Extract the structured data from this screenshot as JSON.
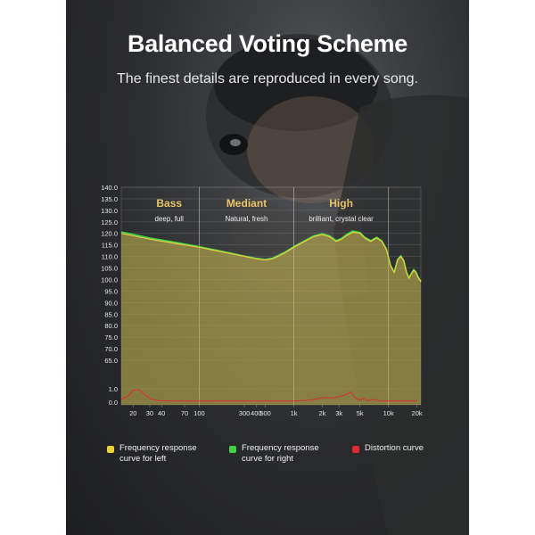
{
  "title": "Balanced Voting Scheme",
  "subtitle": "The finest details are reproduced in every song.",
  "colors": {
    "left": "#e8d23c",
    "right": "#3fd24a",
    "distortion": "#e02a36",
    "accent": "#e9c46a"
  },
  "chart_data": {
    "type": "line",
    "xscale": "log",
    "xlim": [
      15,
      22000
    ],
    "ylim": [
      0,
      140
    ],
    "ylabel": "",
    "xlabel": "",
    "grid": true,
    "y_ticks": [
      "140.0",
      "135.0",
      "130.0",
      "125.0",
      "120.0",
      "115.0",
      "110.0",
      "105.0",
      "100.0",
      "95.0",
      "90.0",
      "85.0",
      "80.0",
      "75.0",
      "70.0",
      "65.0",
      "1.0",
      "0.0"
    ],
    "x_ticks": [
      {
        "v": 20,
        "label": "20"
      },
      {
        "v": 30,
        "label": "30"
      },
      {
        "v": 40,
        "label": "40"
      },
      {
        "v": 70,
        "label": "70"
      },
      {
        "v": 100,
        "label": "100"
      },
      {
        "v": 300,
        "label": "300"
      },
      {
        "v": 400,
        "label": "400"
      },
      {
        "v": 500,
        "label": "500"
      },
      {
        "v": 1000,
        "label": "1k"
      },
      {
        "v": 2000,
        "label": "2k"
      },
      {
        "v": 3000,
        "label": "3k"
      },
      {
        "v": 5000,
        "label": "5k"
      },
      {
        "v": 10000,
        "label": "10k"
      },
      {
        "v": 20000,
        "label": "20k"
      }
    ],
    "regions": [
      {
        "name": "Bass",
        "description": "deep, full",
        "from": 15,
        "to": 100
      },
      {
        "name": "Mediant",
        "description": "Natural, fresh",
        "from": 100,
        "to": 1000
      },
      {
        "name": "High",
        "description": "brilliant, crystal clear",
        "from": 1000,
        "to": 10000
      }
    ],
    "series": [
      {
        "name": "Frequency response curve for left",
        "color": "#e8d23c",
        "x": [
          15,
          20,
          30,
          50,
          70,
          100,
          150,
          200,
          300,
          400,
          500,
          600,
          800,
          1000,
          1300,
          1600,
          2000,
          2400,
          2800,
          3200,
          3600,
          4200,
          5000,
          5600,
          6500,
          7500,
          8500,
          9500,
          10500,
          11500,
          12500,
          13500,
          14500,
          15500,
          16500,
          17500,
          18500,
          19500,
          20500,
          22000
        ],
        "y": [
          120,
          119,
          117.5,
          116,
          115,
          114,
          112.5,
          111.5,
          110,
          109,
          108.5,
          109,
          111.5,
          114,
          116.5,
          118.5,
          119.5,
          118.5,
          116.5,
          117.5,
          119,
          120.5,
          120,
          118,
          116.5,
          118,
          116.5,
          113,
          106,
          103,
          108.5,
          110,
          108,
          103,
          100.5,
          102.5,
          104,
          103,
          101,
          99
        ]
      },
      {
        "name": "Frequency response curve for right",
        "color": "#3fd24a",
        "x": [
          15,
          20,
          30,
          50,
          70,
          100,
          150,
          200,
          300,
          400,
          500,
          600,
          800,
          1000,
          1300,
          1600,
          2000,
          2400,
          2800,
          3200,
          3600,
          4200,
          5000,
          5600,
          6500,
          7500,
          8500,
          9500,
          10500,
          11500,
          12500,
          13500,
          14500,
          15500,
          16500,
          17500,
          18500,
          19500,
          20500,
          22000
        ],
        "y": [
          120.6,
          119.6,
          118,
          116.5,
          115.4,
          114.3,
          112.8,
          111.7,
          110.2,
          109.2,
          108.7,
          109.3,
          111.8,
          114.3,
          116.8,
          118.8,
          119.9,
          118.9,
          116.9,
          117.9,
          119.5,
          121,
          120.4,
          118.4,
          116.9,
          118.3,
          116.8,
          113.3,
          106.3,
          103.2,
          108.7,
          110.3,
          108.3,
          103.3,
          100.8,
          102.8,
          104.3,
          103.3,
          101.3,
          99.3
        ]
      },
      {
        "name": "Distortion curve",
        "color": "#e02a36",
        "x": [
          15,
          18,
          20,
          23,
          27,
          32,
          40,
          60,
          100,
          200,
          500,
          1000,
          1500,
          2000,
          2500,
          3000,
          3500,
          4000,
          4500,
          5000,
          5500,
          6000,
          7000,
          8000,
          10000,
          15000,
          20000
        ],
        "y": [
          0.2,
          0.5,
          0.9,
          0.95,
          0.5,
          0.2,
          0.1,
          0.08,
          0.08,
          0.08,
          0.08,
          0.08,
          0.15,
          0.35,
          0.3,
          0.4,
          0.55,
          0.75,
          0.3,
          0.15,
          0.3,
          0.1,
          0.2,
          0.08,
          0.08,
          0.08,
          0.08
        ]
      }
    ]
  }
}
